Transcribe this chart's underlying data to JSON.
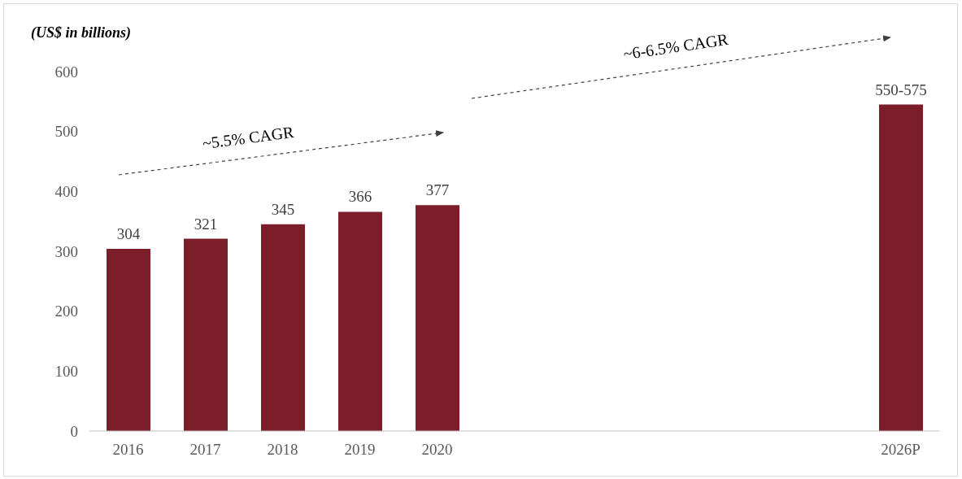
{
  "chart_data": {
    "type": "bar",
    "ylabel": "(US$ in billions)",
    "categories": [
      "2016",
      "2017",
      "2018",
      "2019",
      "2020",
      null,
      null,
      null,
      null,
      null,
      "2026P"
    ],
    "values": [
      304,
      321,
      345,
      366,
      377,
      null,
      null,
      null,
      null,
      null,
      545
    ],
    "value_labels": [
      "304",
      "321",
      "345",
      "366",
      "377",
      null,
      null,
      null,
      null,
      null,
      "550-575"
    ],
    "color": "#7b1e2a",
    "ylim": [
      0,
      600
    ],
    "yticks": [
      0,
      100,
      200,
      300,
      400,
      500,
      600
    ],
    "grid": false,
    "legend": false,
    "annotations": [
      "~5.5% CAGR",
      "~6-6.5% CAGR"
    ]
  }
}
